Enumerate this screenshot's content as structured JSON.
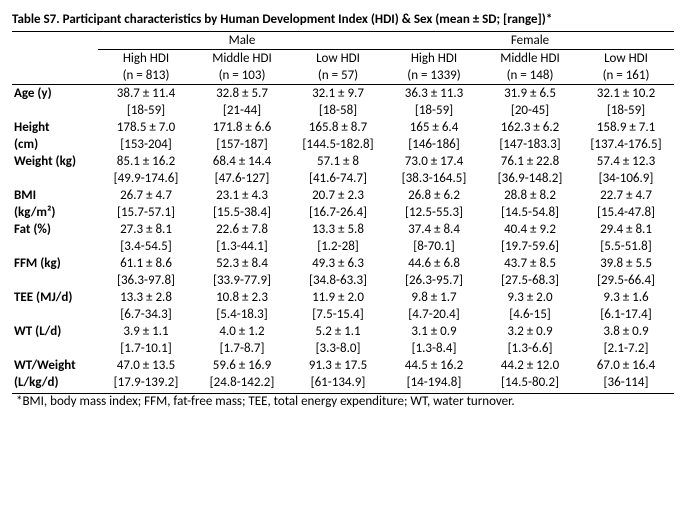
{
  "title": "Table S7. Participant characteristics by Human Development Index (HDI) & Sex (mean ± SD; [range])*",
  "sex": {
    "male": "Male",
    "female": "Female"
  },
  "hdi": {
    "high": {
      "label": "High HDI",
      "n_m": "(n = 813)",
      "n_f": "(n = 1339)"
    },
    "middle": {
      "label": "Middle HDI",
      "n_m": "(n = 103)",
      "n_f": "(n = 148)"
    },
    "low": {
      "label": "Low HDI",
      "n_m": "(n = 57)",
      "n_f": "(n = 161)"
    }
  },
  "rows": {
    "age": {
      "label": "Age (y)",
      "m": {
        "h": "38.7 ± 11.4",
        "hR": "[18-59]",
        "m": "32.8 ± 5.7",
        "mR": "[21-44]",
        "l": "32.1 ± 9.7",
        "lR": "[18-58]"
      },
      "f": {
        "h": "36.3 ± 11.3",
        "hR": "[18-59]",
        "m": "31.9 ± 6.5",
        "mR": "[20-45]",
        "l": "32.1 ± 10.2",
        "lR": "[18-59]"
      }
    },
    "height": {
      "label": "Height (cm)",
      "m": {
        "h": "178.5 ± 7.0",
        "hR": "[153-204]",
        "m": "171.8 ± 6.6",
        "mR": "[157-187]",
        "l": "165.8 ± 8.7",
        "lR": "[144.5-182.8]"
      },
      "f": {
        "h": "165 ± 6.4",
        "hR": "[146-186]",
        "m": "162.3 ± 6.2",
        "mR": "[147-183.3]",
        "l": "158.9 ± 7.1",
        "lR": "[137.4-176.5]"
      }
    },
    "weight": {
      "label": "Weight (kg)",
      "m": {
        "h": "85.1 ± 16.2",
        "hR": "[49.9-174.6]",
        "m": "68.4 ± 14.4",
        "mR": "[47.6-127]",
        "l": "57.1 ± 8",
        "lR": "[41.6-74.7]"
      },
      "f": {
        "h": "73.0 ± 17.4",
        "hR": "[38.3-164.5]",
        "m": "76.1 ± 22.8",
        "mR": "[36.9-148.2]",
        "l": "57.4 ± 12.3",
        "lR": "[34-106.9]"
      }
    },
    "bmi": {
      "label": "BMI (kg/m²)",
      "m": {
        "h": "26.7 ± 4.7",
        "hR": "[15.7-57.1]",
        "m": "23.1 ± 4.3",
        "mR": "[15.5-38.4]",
        "l": "20.7 ± 2.3",
        "lR": "[16.7-26.4]"
      },
      "f": {
        "h": "26.8 ± 6.2",
        "hR": "[12.5-55.3]",
        "m": "28.8 ± 8.2",
        "mR": "[14.5-54.8]",
        "l": "22.7 ± 4.7",
        "lR": "[15.4-47.8]"
      }
    },
    "fat": {
      "label": "Fat (%)",
      "m": {
        "h": "27.3 ± 8.1",
        "hR": "[3.4-54.5]",
        "m": "22.6 ± 7.8",
        "mR": "[1.3-44.1]",
        "l": "13.3 ± 5.8",
        "lR": "[1.2-28]"
      },
      "f": {
        "h": "37.4 ± 8.4",
        "hR": "[8-70.1]",
        "m": "40.4 ± 9.2",
        "mR": "[19.7-59.6]",
        "l": "29.4 ± 8.1",
        "lR": "[5.5-51.8]"
      }
    },
    "ffm": {
      "label": "FFM (kg)",
      "m": {
        "h": "61.1 ± 8.6",
        "hR": "[36.3-97.8]",
        "m": "52.3 ± 8.4",
        "mR": "[33.9-77.9]",
        "l": "49.3 ± 6.3",
        "lR": "[34.8-63.3]"
      },
      "f": {
        "h": "44.6 ± 6.8",
        "hR": "[26.3-95.7]",
        "m": "43.7 ± 8.5",
        "mR": "[27.5-68.3]",
        "l": "39.8 ± 5.5",
        "lR": "[29.5-66.4]"
      }
    },
    "tee": {
      "label": "TEE (MJ/d)",
      "m": {
        "h": "13.3 ± 2.8",
        "hR": "[6.7-34.3]",
        "m": "10.8 ± 2.3",
        "mR": "[5.4-18.3]",
        "l": "11.9 ± 2.0",
        "lR": "[7.5-15.4]"
      },
      "f": {
        "h": "9.8 ± 1.7",
        "hR": "[4.7-20.4]",
        "m": "9.3 ± 2.0",
        "mR": "[4.6-15]",
        "l": "9.3 ± 1.6",
        "lR": "[6.1-17.4]"
      }
    },
    "wt": {
      "label": "WT (L/d)",
      "m": {
        "h": "3.9 ± 1.1",
        "hR": "[1.7-10.1]",
        "m": "4.0 ± 1.2",
        "mR": "[1.7-8.7]",
        "l": "5.2 ± 1.1",
        "lR": "[3.3-8.0]"
      },
      "f": {
        "h": "3.1 ± 0.9",
        "hR": "[1.3-8.4]",
        "m": "3.2 ± 0.9",
        "mR": "[1.3-6.6]",
        "l": "3.8 ± 0.9",
        "lR": "[2.1-7.2]"
      }
    },
    "wtw": {
      "label": "WT/Weight (L/kg/d)",
      "m": {
        "h": "47.0 ± 13.5",
        "hR": "[17.9-139.2]",
        "m": "59.6 ± 16.9",
        "mR": "[24.8-142.2]",
        "l": "91.3 ± 17.5",
        "lR": "[61-134.9]"
      },
      "f": {
        "h": "44.5 ± 16.2",
        "hR": "[14-194.8]",
        "m": "44.2 ± 12.0",
        "mR": "[14.5-80.2]",
        "l": "67.0 ± 16.4",
        "lR": "[36-114]"
      }
    }
  },
  "footnote": "*BMI, body mass index; FFM, fat-free mass; TEE, total energy expenditure; WT, water turnover."
}
